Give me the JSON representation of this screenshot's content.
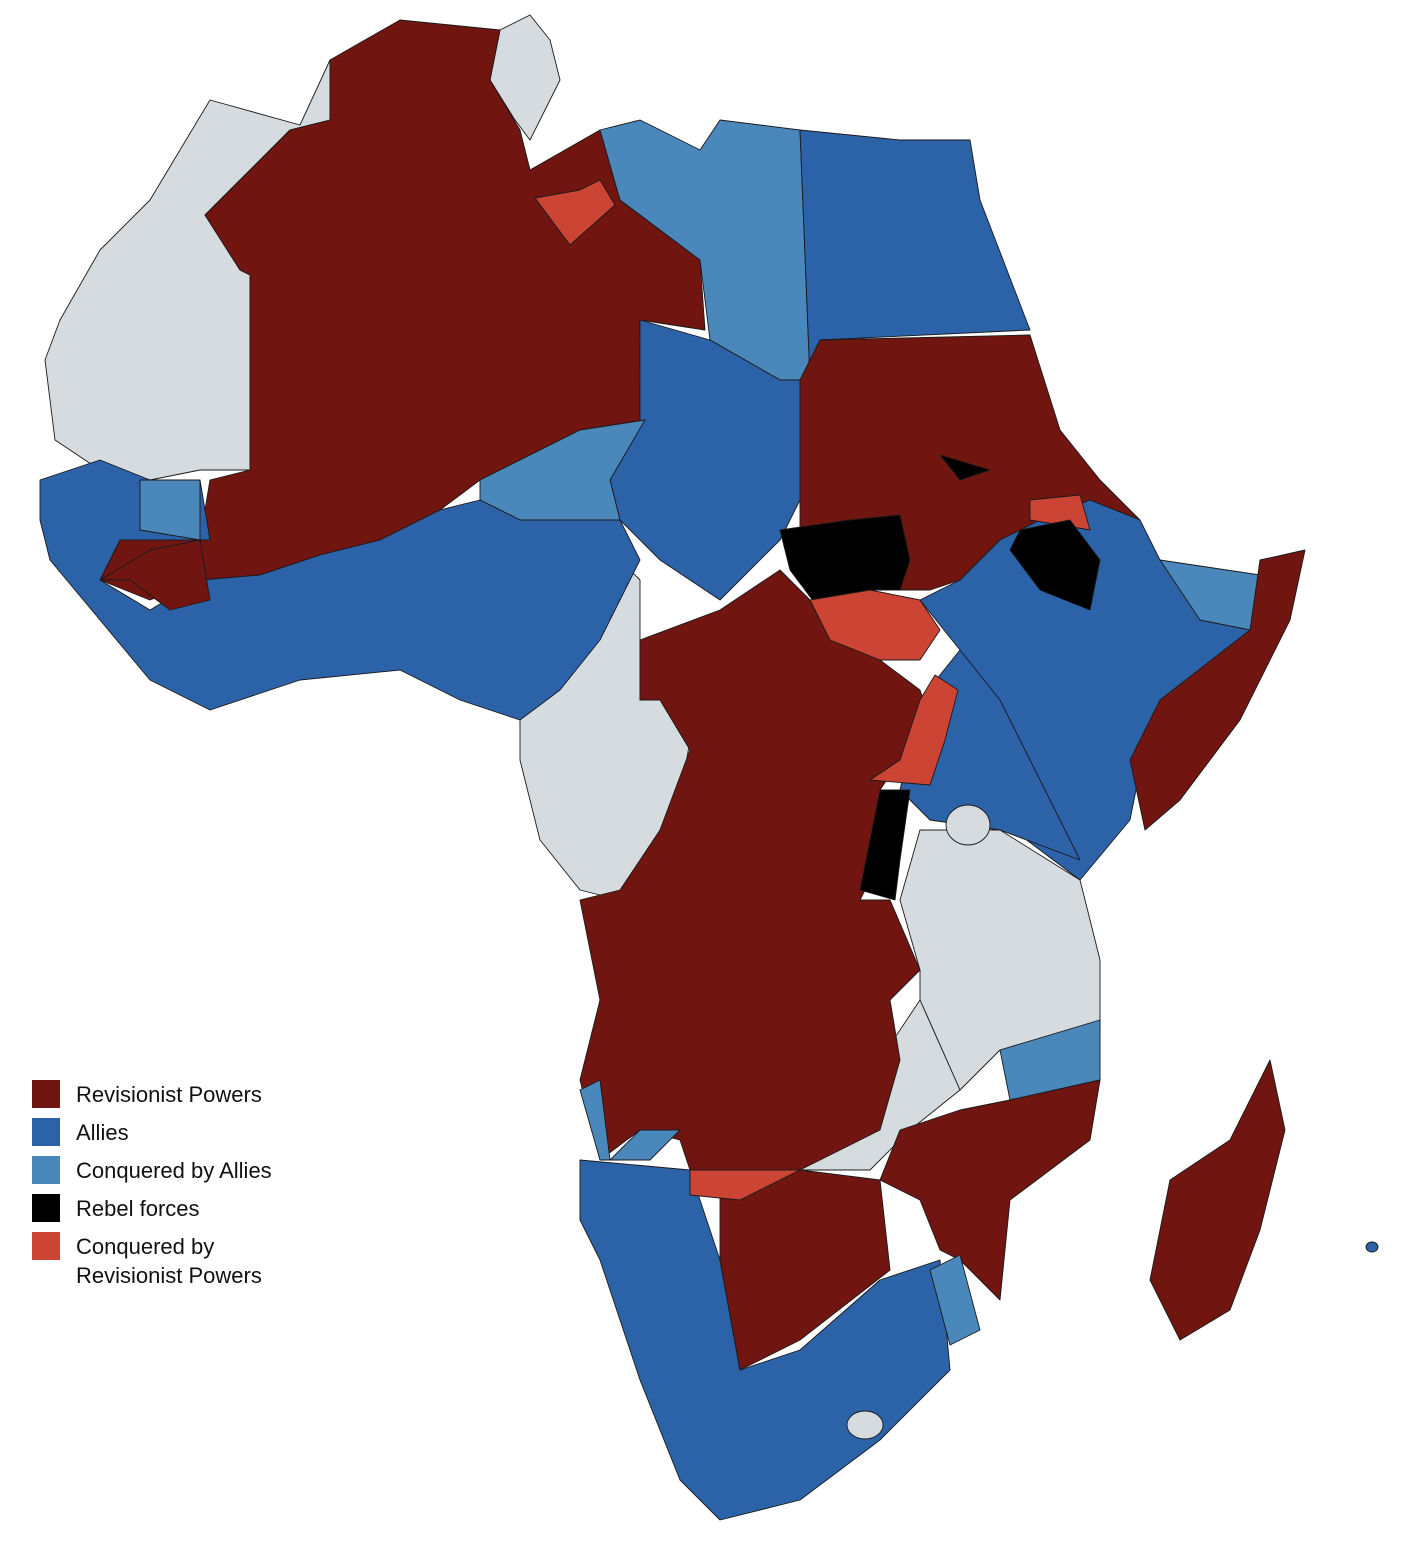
{
  "legend": {
    "items": [
      {
        "label": "Revisionist Powers",
        "color": "#701510"
      },
      {
        "label": "Allies",
        "color": "#2c62a8"
      },
      {
        "label": "Conquered by Allies",
        "color": "#4a87ba"
      },
      {
        "label": "Rebel forces",
        "color": "#000000"
      },
      {
        "label": "Conquered by Revisionist Powers",
        "color": "#cc4434"
      }
    ]
  }
}
